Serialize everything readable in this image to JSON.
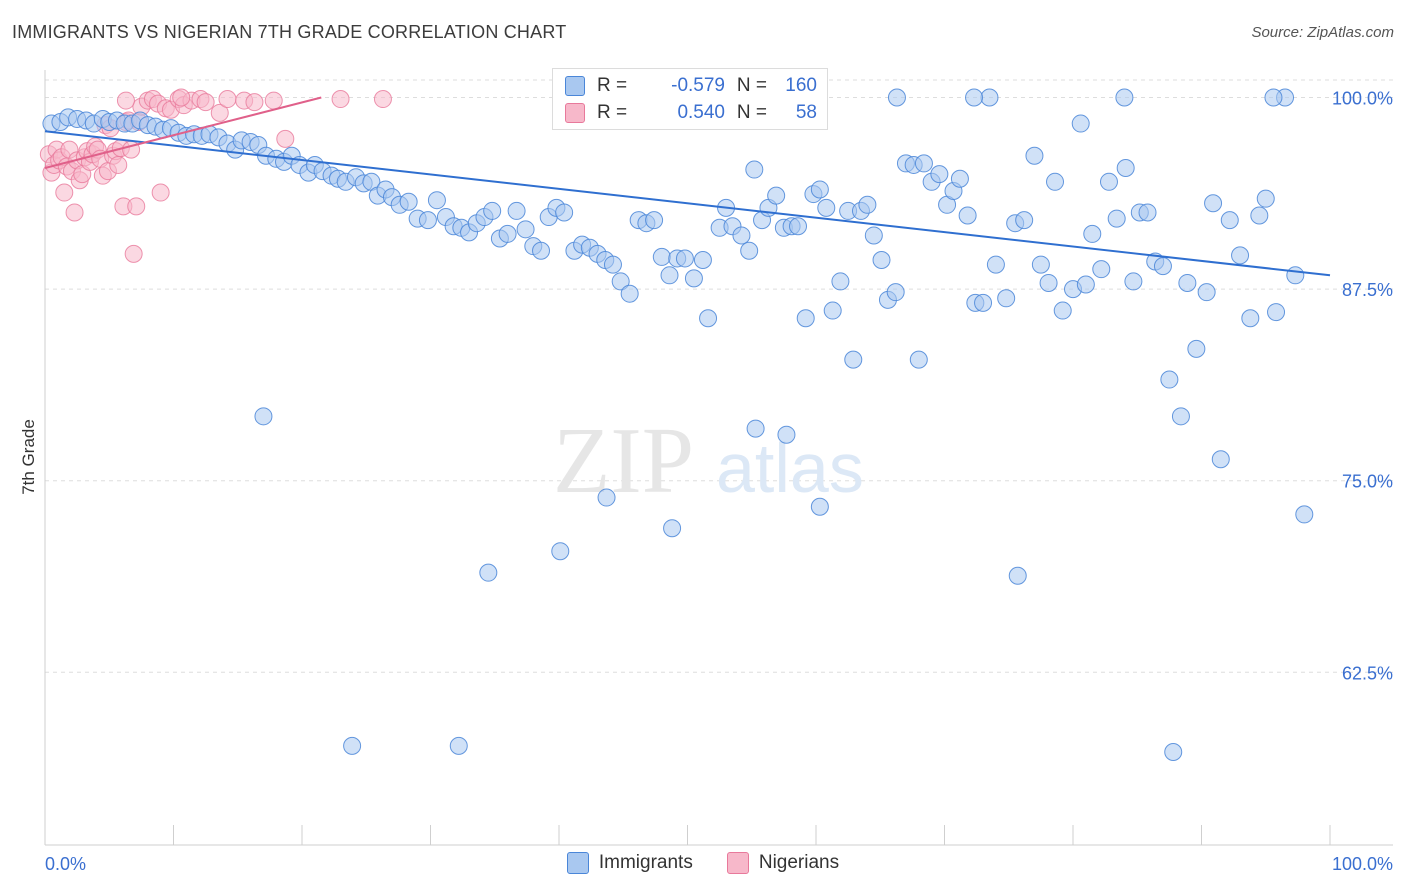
{
  "title": "IMMIGRANTS VS NIGERIAN 7TH GRADE CORRELATION CHART",
  "source": "Source: ZipAtlas.com",
  "watermark": {
    "zip": "ZIP",
    "atlas": "atlas"
  },
  "colors": {
    "immigrants_fill": "#a9c8f0",
    "immigrants_stroke": "#4a86d8",
    "immigrants_line": "#2f6fd0",
    "nigerians_fill": "#f7b8ca",
    "nigerians_stroke": "#e8799b",
    "nigerians_line": "#e0608a",
    "axis_text": "#3a6fd0",
    "grid": "#dddddd"
  },
  "legend_box": {
    "rows": [
      {
        "r_label": "R =",
        "r_value": "-0.579",
        "n_label": "N =",
        "n_value": "160"
      },
      {
        "r_label": "R =",
        "r_value": "0.540",
        "n_label": "N =",
        "n_value": "58"
      }
    ]
  },
  "legend_bottom": [
    {
      "label": "Immigrants"
    },
    {
      "label": "Nigerians"
    }
  ],
  "chart_data": {
    "type": "scatter",
    "title": "IMMIGRANTS VS NIGERIAN 7TH GRADE CORRELATION CHART",
    "xlabel": "",
    "ylabel": "7th Grade",
    "xlim": [
      0,
      100
    ],
    "ylim": [
      53,
      101.4
    ],
    "x_tick_labels": [
      "0.0%",
      "100.0%"
    ],
    "y_ticks": [
      62.5,
      75.0,
      87.5,
      100.0
    ],
    "y_tick_labels": [
      "62.5%",
      "75.0%",
      "87.5%",
      "100.0%"
    ],
    "grid": "horizontal dashed",
    "legend_placement": "bottom-center",
    "series": [
      {
        "name": "Immigrants",
        "trendline": {
          "x": [
            0,
            100
          ],
          "y": [
            97.8,
            88.4
          ]
        },
        "points": [
          [
            0.5,
            98.3
          ],
          [
            1.2,
            98.4
          ],
          [
            1.8,
            98.7
          ],
          [
            2.5,
            98.6
          ],
          [
            3.2,
            98.5
          ],
          [
            3.8,
            98.3
          ],
          [
            4.5,
            98.6
          ],
          [
            5.0,
            98.4
          ],
          [
            5.6,
            98.5
          ],
          [
            6.2,
            98.3
          ],
          [
            6.8,
            98.3
          ],
          [
            7.4,
            98.5
          ],
          [
            8.0,
            98.2
          ],
          [
            8.6,
            98.1
          ],
          [
            9.2,
            97.9
          ],
          [
            9.8,
            98.0
          ],
          [
            10.4,
            97.7
          ],
          [
            11.0,
            97.5
          ],
          [
            11.6,
            97.6
          ],
          [
            12.2,
            97.5
          ],
          [
            12.8,
            97.6
          ],
          [
            13.5,
            97.4
          ],
          [
            14.2,
            97.0
          ],
          [
            14.8,
            96.6
          ],
          [
            15.3,
            97.2
          ],
          [
            16.0,
            97.1
          ],
          [
            16.6,
            96.9
          ],
          [
            17.2,
            96.2
          ],
          [
            18.0,
            96.0
          ],
          [
            18.6,
            95.8
          ],
          [
            19.2,
            96.2
          ],
          [
            19.8,
            95.6
          ],
          [
            20.5,
            95.1
          ],
          [
            21.0,
            95.6
          ],
          [
            21.6,
            95.2
          ],
          [
            22.3,
            94.9
          ],
          [
            22.8,
            94.7
          ],
          [
            23.4,
            94.5
          ],
          [
            24.2,
            94.8
          ],
          [
            24.8,
            94.4
          ],
          [
            25.4,
            94.5
          ],
          [
            25.9,
            93.6
          ],
          [
            26.5,
            94.0
          ],
          [
            27.0,
            93.5
          ],
          [
            27.6,
            93.0
          ],
          [
            28.3,
            93.2
          ],
          [
            29.0,
            92.1
          ],
          [
            29.8,
            92.0
          ],
          [
            30.5,
            93.3
          ],
          [
            31.2,
            92.2
          ],
          [
            31.8,
            91.6
          ],
          [
            32.4,
            91.5
          ],
          [
            33.0,
            91.2
          ],
          [
            33.6,
            91.8
          ],
          [
            34.2,
            92.2
          ],
          [
            34.8,
            92.6
          ],
          [
            35.4,
            90.8
          ],
          [
            36.0,
            91.1
          ],
          [
            36.7,
            92.6
          ],
          [
            37.4,
            91.4
          ],
          [
            38.0,
            90.3
          ],
          [
            38.6,
            90.0
          ],
          [
            39.2,
            92.2
          ],
          [
            39.8,
            92.8
          ],
          [
            40.4,
            92.5
          ],
          [
            41.2,
            90.0
          ],
          [
            41.8,
            90.4
          ],
          [
            42.4,
            90.2
          ],
          [
            43.0,
            89.8
          ],
          [
            43.6,
            89.4
          ],
          [
            44.2,
            89.1
          ],
          [
            44.8,
            88.0
          ],
          [
            45.5,
            87.2
          ],
          [
            46.2,
            92.0
          ],
          [
            46.8,
            91.8
          ],
          [
            47.4,
            92.0
          ],
          [
            48.0,
            89.6
          ],
          [
            48.6,
            88.4
          ],
          [
            49.2,
            89.5
          ],
          [
            49.8,
            89.5
          ],
          [
            50.5,
            88.2
          ],
          [
            51.2,
            89.4
          ],
          [
            51.6,
            85.6
          ],
          [
            52.5,
            91.5
          ],
          [
            53.0,
            92.8
          ],
          [
            53.5,
            91.6
          ],
          [
            54.2,
            91.0
          ],
          [
            54.8,
            90.0
          ],
          [
            55.2,
            95.3
          ],
          [
            55.8,
            92.0
          ],
          [
            56.3,
            92.8
          ],
          [
            56.9,
            93.6
          ],
          [
            57.5,
            91.5
          ],
          [
            58.1,
            91.6
          ],
          [
            58.6,
            91.6
          ],
          [
            59.2,
            85.6
          ],
          [
            59.8,
            93.7
          ],
          [
            60.3,
            94.0
          ],
          [
            60.8,
            92.8
          ],
          [
            61.3,
            86.1
          ],
          [
            61.9,
            88.0
          ],
          [
            62.5,
            92.6
          ],
          [
            62.9,
            82.9
          ],
          [
            63.5,
            92.6
          ],
          [
            64.0,
            93.0
          ],
          [
            64.5,
            91.0
          ],
          [
            65.1,
            89.4
          ],
          [
            65.6,
            86.8
          ],
          [
            66.2,
            87.3
          ],
          [
            67.0,
            95.7
          ],
          [
            67.6,
            95.6
          ],
          [
            68.0,
            82.9
          ],
          [
            68.4,
            95.7
          ],
          [
            69.0,
            94.5
          ],
          [
            69.6,
            95.0
          ],
          [
            70.2,
            93.0
          ],
          [
            70.7,
            93.9
          ],
          [
            71.2,
            94.7
          ],
          [
            71.8,
            92.3
          ],
          [
            72.4,
            86.6
          ],
          [
            73.0,
            86.6
          ],
          [
            73.5,
            100.0
          ],
          [
            74.0,
            89.1
          ],
          [
            74.8,
            86.9
          ],
          [
            75.5,
            91.8
          ],
          [
            76.2,
            92.0
          ],
          [
            77.0,
            96.2
          ],
          [
            77.5,
            89.1
          ],
          [
            78.1,
            87.9
          ],
          [
            78.6,
            94.5
          ],
          [
            79.2,
            86.1
          ],
          [
            80.0,
            87.5
          ],
          [
            80.6,
            98.3
          ],
          [
            81.0,
            87.8
          ],
          [
            81.5,
            91.1
          ],
          [
            82.2,
            88.8
          ],
          [
            82.8,
            94.5
          ],
          [
            83.4,
            92.1
          ],
          [
            84.1,
            95.4
          ],
          [
            84.7,
            88.0
          ],
          [
            85.2,
            92.5
          ],
          [
            85.8,
            92.5
          ],
          [
            86.4,
            89.3
          ],
          [
            87.0,
            89.0
          ],
          [
            87.5,
            81.6
          ],
          [
            88.4,
            79.2
          ],
          [
            88.9,
            87.9
          ],
          [
            89.6,
            83.6
          ],
          [
            90.4,
            87.3
          ],
          [
            90.9,
            93.1
          ],
          [
            91.5,
            76.4
          ],
          [
            92.2,
            92.0
          ],
          [
            93.0,
            89.7
          ],
          [
            93.8,
            85.6
          ],
          [
            94.5,
            92.3
          ],
          [
            95.0,
            93.4
          ],
          [
            95.8,
            86.0
          ],
          [
            96.5,
            100.0
          ],
          [
            97.3,
            88.4
          ],
          [
            98.0,
            72.8
          ],
          [
            17.0,
            79.2
          ],
          [
            23.9,
            57.7
          ],
          [
            32.2,
            57.7
          ],
          [
            34.5,
            69.0
          ],
          [
            40.1,
            70.4
          ],
          [
            43.7,
            73.9
          ],
          [
            48.8,
            71.9
          ],
          [
            55.3,
            78.4
          ],
          [
            60.3,
            73.3
          ],
          [
            75.7,
            68.8
          ],
          [
            57.7,
            78.0
          ],
          [
            66.3,
            100.0
          ],
          [
            72.3,
            100.0
          ],
          [
            84.0,
            100.0
          ],
          [
            95.6,
            100.0
          ],
          [
            87.8,
            57.3
          ]
        ]
      },
      {
        "name": "Nigerians",
        "trendline": {
          "x": [
            0,
            21.5
          ],
          "y": [
            95.4,
            100.0
          ]
        },
        "points": [
          [
            0.3,
            96.3
          ],
          [
            0.5,
            95.1
          ],
          [
            0.7,
            95.6
          ],
          [
            0.9,
            96.6
          ],
          [
            1.1,
            95.9
          ],
          [
            1.3,
            96.1
          ],
          [
            1.5,
            93.8
          ],
          [
            1.7,
            95.5
          ],
          [
            1.9,
            96.6
          ],
          [
            2.1,
            95.2
          ],
          [
            2.3,
            92.5
          ],
          [
            2.5,
            95.9
          ],
          [
            2.7,
            94.6
          ],
          [
            2.9,
            95.0
          ],
          [
            3.1,
            96.1
          ],
          [
            3.3,
            96.5
          ],
          [
            3.5,
            95.8
          ],
          [
            3.7,
            96.3
          ],
          [
            3.9,
            96.8
          ],
          [
            4.1,
            96.6
          ],
          [
            4.3,
            96.0
          ],
          [
            4.5,
            94.9
          ],
          [
            4.7,
            98.2
          ],
          [
            4.9,
            95.2
          ],
          [
            5.1,
            98.0
          ],
          [
            5.3,
            96.2
          ],
          [
            5.5,
            96.5
          ],
          [
            5.7,
            95.6
          ],
          [
            5.9,
            96.7
          ],
          [
            6.1,
            92.9
          ],
          [
            6.3,
            98.4
          ],
          [
            6.5,
            98.5
          ],
          [
            6.7,
            96.6
          ],
          [
            6.9,
            89.8
          ],
          [
            7.1,
            92.9
          ],
          [
            7.3,
            98.4
          ],
          [
            7.5,
            99.4
          ],
          [
            8.0,
            99.8
          ],
          [
            8.4,
            99.9
          ],
          [
            8.8,
            99.6
          ],
          [
            9.0,
            93.8
          ],
          [
            9.4,
            99.3
          ],
          [
            9.8,
            99.2
          ],
          [
            10.4,
            99.9
          ],
          [
            10.8,
            99.5
          ],
          [
            11.4,
            99.8
          ],
          [
            12.1,
            99.9
          ],
          [
            12.5,
            99.7
          ],
          [
            13.6,
            99.0
          ],
          [
            14.2,
            99.9
          ],
          [
            15.5,
            99.8
          ],
          [
            16.3,
            99.7
          ],
          [
            17.8,
            99.8
          ],
          [
            18.7,
            97.3
          ],
          [
            23.0,
            99.9
          ],
          [
            26.3,
            99.9
          ],
          [
            6.3,
            99.8
          ],
          [
            10.6,
            100.0
          ]
        ]
      }
    ]
  }
}
